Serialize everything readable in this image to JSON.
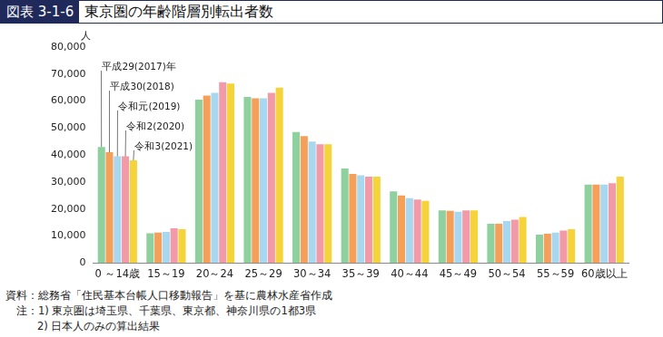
{
  "chart_data": {
    "type": "bar",
    "title": "図表 3-1-6 東京圏の年齢階層別転出者数",
    "y_label": "人",
    "categories": [
      "0 ～14歳",
      "15～19",
      "20～24",
      "25～29",
      "30～34",
      "35～39",
      "40～44",
      "45～49",
      "50～54",
      "55～59",
      "60歳以上"
    ],
    "series": [
      {
        "name": "平成29(2017)年",
        "color": "#8fd19e",
        "values": [
          43000,
          11000,
          60500,
          61500,
          48500,
          35000,
          26500,
          19500,
          14500,
          10500,
          29000
        ]
      },
      {
        "name": "平成30(2018)",
        "color": "#f5a05a",
        "values": [
          41000,
          11200,
          62000,
          61000,
          47000,
          33000,
          25000,
          19300,
          14500,
          10800,
          29000
        ]
      },
      {
        "name": "令和元(2019)",
        "color": "#a8d8f0",
        "values": [
          39500,
          11500,
          63000,
          61000,
          45000,
          32500,
          24000,
          19000,
          15500,
          11200,
          29000
        ]
      },
      {
        "name": "令和2(2020)",
        "color": "#f29aa8",
        "values": [
          39500,
          12800,
          67000,
          63000,
          44000,
          32000,
          23500,
          19500,
          16000,
          12000,
          29500
        ]
      },
      {
        "name": "令和3(2021)",
        "color": "#f5d33a",
        "values": [
          38000,
          12500,
          66500,
          65000,
          44000,
          32000,
          23000,
          19500,
          17000,
          12500,
          32000
        ]
      }
    ],
    "ylim": [
      0,
      80000
    ],
    "yticks": [
      {
        "value": 0,
        "label": "0"
      },
      {
        "value": 10000,
        "label": "10,000"
      },
      {
        "value": 20000,
        "label": "20,000"
      },
      {
        "value": 30000,
        "label": "30,000"
      },
      {
        "value": 40000,
        "label": "40,000"
      },
      {
        "value": 50000,
        "label": "50,000"
      },
      {
        "value": 60000,
        "label": "60,000"
      },
      {
        "value": 70000,
        "label": "70,000"
      },
      {
        "value": 80000,
        "label": "80,000"
      }
    ],
    "grid": false,
    "annotations": [
      "資料：総務省「住民基本台帳人口移動報告」を基に農林水産省作成",
      "注：1) 東京圏は埼玉県、千葉県、東京都、神奈川県の1都3県",
      "2) 日本人のみの算出結果"
    ]
  }
}
